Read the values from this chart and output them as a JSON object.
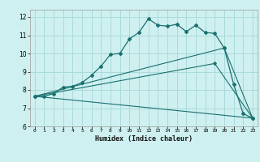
{
  "xlabel": "Humidex (Indice chaleur)",
  "bg_color": "#cff0f0",
  "grid_color": "#aadada",
  "line_color": "#1a7070",
  "xlim": [
    -0.5,
    23.5
  ],
  "ylim": [
    6,
    12.4
  ],
  "yticks": [
    6,
    7,
    8,
    9,
    10,
    11,
    12
  ],
  "xticks": [
    0,
    1,
    2,
    3,
    4,
    5,
    6,
    7,
    8,
    9,
    10,
    11,
    12,
    13,
    14,
    15,
    16,
    17,
    18,
    19,
    20,
    21,
    22,
    23
  ],
  "series1_x": [
    0,
    1,
    2,
    3,
    4,
    5,
    6,
    7,
    8,
    9,
    10,
    11,
    12,
    13,
    14,
    15,
    16,
    17,
    18,
    19,
    20,
    21,
    22,
    23
  ],
  "series1_y": [
    7.65,
    7.65,
    7.8,
    8.15,
    8.2,
    8.4,
    8.8,
    9.3,
    9.95,
    10.0,
    10.8,
    11.15,
    11.9,
    11.55,
    11.5,
    11.6,
    11.2,
    11.55,
    11.15,
    11.1,
    10.3,
    8.3,
    6.7,
    6.45
  ],
  "series2_x": [
    0,
    20,
    23
  ],
  "series2_y": [
    7.65,
    10.3,
    6.45
  ],
  "series3_x": [
    0,
    19,
    23
  ],
  "series3_y": [
    7.65,
    9.45,
    6.45
  ],
  "series4_x": [
    0,
    23
  ],
  "series4_y": [
    7.65,
    6.45
  ]
}
